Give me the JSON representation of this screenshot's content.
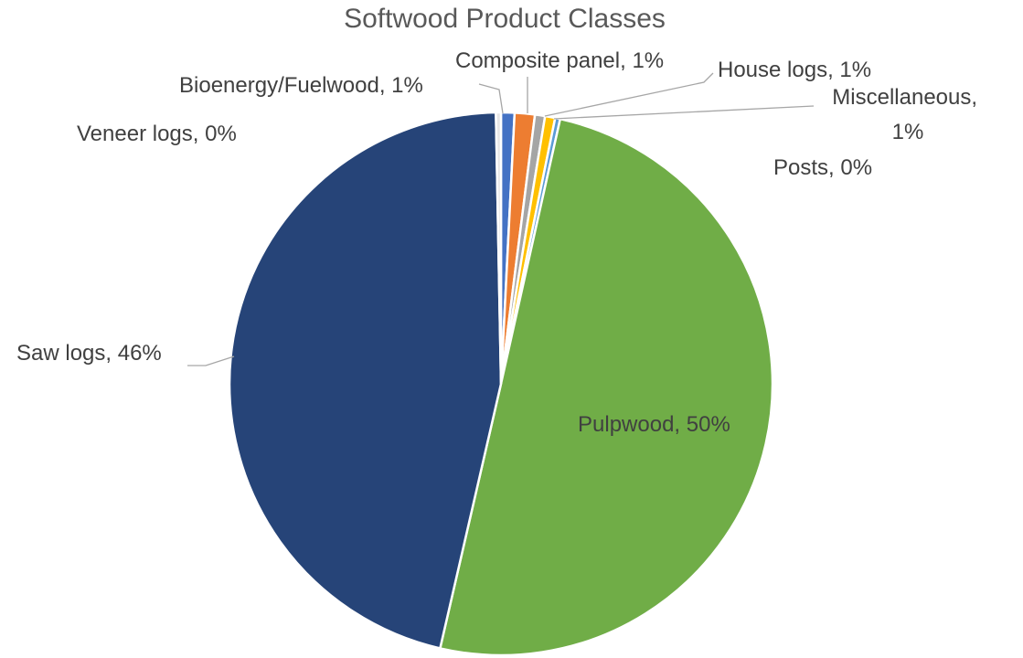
{
  "chart_data": {
    "type": "pie",
    "title": "Softwood Product Classes",
    "categories": [
      "Bioenergy/Fuelwood",
      "Composite panel",
      "House logs",
      "Miscellaneous",
      "Posts",
      "Pulpwood",
      "Saw logs",
      "Veneer logs"
    ],
    "values": [
      0.8,
      1.2,
      0.6,
      0.6,
      0.3,
      50.1,
      46.1,
      0.3
    ],
    "value_labels": [
      "1%",
      "1%",
      "1%",
      "1%",
      "0%",
      "50%",
      "46%",
      "0%"
    ],
    "label_separator": ", ",
    "colors": [
      "#4472c4",
      "#ed7d31",
      "#a5a5a5",
      "#ffc000",
      "#5b9bd5",
      "#70ad47",
      "#264478",
      "#e7e6e6"
    ]
  }
}
